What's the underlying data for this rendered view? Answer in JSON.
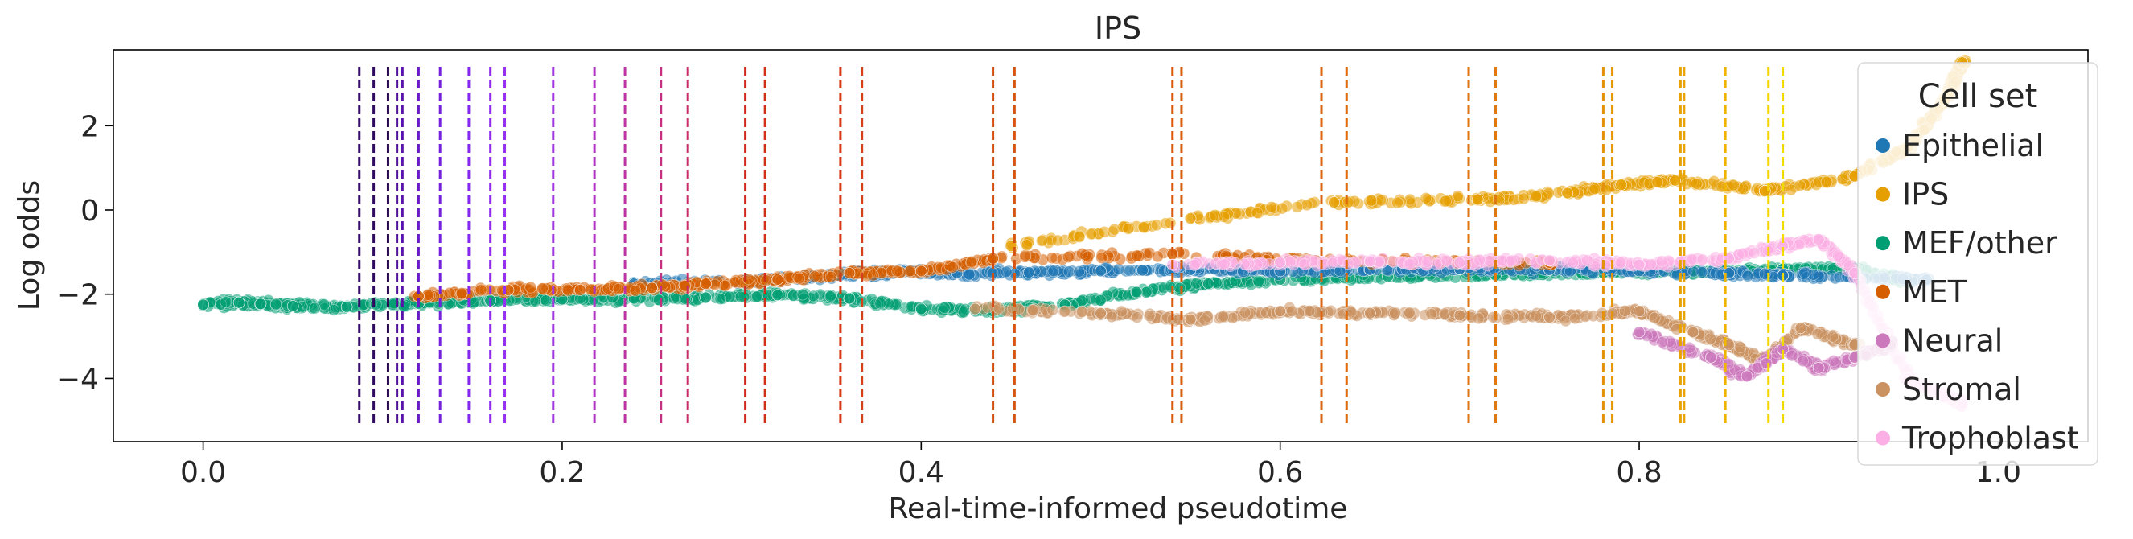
{
  "chart_data": {
    "type": "scatter",
    "title": "IPS",
    "xlabel": "Real-time-informed pseudotime",
    "ylabel": "Log odds",
    "xlim": [
      -0.05,
      1.05
    ],
    "ylim": [
      -5.5,
      3.8
    ],
    "x_ticks": [
      0.0,
      0.2,
      0.4,
      0.6,
      0.8,
      1.0
    ],
    "x_tick_labels": [
      "0.0",
      "0.2",
      "0.4",
      "0.6",
      "0.8",
      "1.0"
    ],
    "y_ticks": [
      -4,
      -2,
      0,
      2
    ],
    "y_tick_labels": [
      "−4",
      "−2",
      "0",
      "2"
    ],
    "grid": false,
    "legend": {
      "title": "Cell set",
      "placement": "top-right",
      "entries": [
        "Epithelial",
        "IPS",
        "MEF/other",
        "MET",
        "Neural",
        "Stromal",
        "Trophoblast"
      ]
    },
    "series_colors": {
      "Epithelial": "#1f77b4",
      "IPS": "#e69f00",
      "MEF/other": "#029e73",
      "MET": "#d55e00",
      "Neural": "#cc78bc",
      "Stromal": "#ca9161",
      "Trophoblast": "#fbafe4"
    },
    "vlines": {
      "ymin": -5.1,
      "ymax": 3.4,
      "style": "dashed",
      "x": [
        0.087,
        0.095,
        0.103,
        0.108,
        0.111,
        0.12,
        0.132,
        0.148,
        0.16,
        0.168,
        0.195,
        0.218,
        0.235,
        0.255,
        0.27,
        0.302,
        0.313,
        0.355,
        0.367,
        0.44,
        0.452,
        0.54,
        0.545,
        0.623,
        0.637,
        0.705,
        0.72,
        0.78,
        0.785,
        0.823,
        0.825,
        0.848,
        0.872,
        0.88
      ],
      "colors": [
        "#3a0b6e",
        "#300a60",
        "#2b0a54",
        "#52109c",
        "#5a12ad",
        "#6b19c8",
        "#7520dc",
        "#8527ec",
        "#8f2cf0",
        "#9630f0",
        "#a236e3",
        "#b035c4",
        "#bc33a6",
        "#c3307f",
        "#c92d69",
        "#cd2a1c",
        "#d02f18",
        "#d33915",
        "#d5401a",
        "#d44d12",
        "#d5540f",
        "#d65a0e",
        "#d95f10",
        "#dc6410",
        "#dd6b0f",
        "#df7410",
        "#e07a10",
        "#e49008",
        "#e69505",
        "#e8a204",
        "#e9a505",
        "#f0b400",
        "#f5d500",
        "#f2dc00"
      ]
    },
    "series": [
      {
        "name": "MEF/other",
        "points": [
          [
            0.0,
            -2.25
          ],
          [
            0.02,
            -2.2
          ],
          [
            0.032,
            -2.23
          ],
          [
            0.05,
            -2.28
          ],
          [
            0.08,
            -2.3
          ],
          [
            0.12,
            -2.22
          ],
          [
            0.16,
            -2.15
          ],
          [
            0.2,
            -2.12
          ],
          [
            0.24,
            -2.1
          ],
          [
            0.28,
            -2.08
          ],
          [
            0.32,
            -2.02
          ],
          [
            0.36,
            -2.1
          ],
          [
            0.4,
            -2.35
          ],
          [
            0.44,
            -2.4
          ],
          [
            0.48,
            -2.25
          ],
          [
            0.52,
            -1.95
          ],
          [
            0.56,
            -1.75
          ],
          [
            0.6,
            -1.65
          ],
          [
            0.66,
            -1.58
          ],
          [
            0.72,
            -1.55
          ],
          [
            0.78,
            -1.5
          ],
          [
            0.84,
            -1.45
          ],
          [
            0.88,
            -1.4
          ],
          [
            0.92,
            -1.38
          ],
          [
            0.95,
            -1.7
          ]
        ]
      },
      {
        "name": "Epithelial",
        "points": [
          [
            0.24,
            -1.75
          ],
          [
            0.3,
            -1.7
          ],
          [
            0.34,
            -1.6
          ],
          [
            0.37,
            -1.5
          ],
          [
            0.39,
            -1.45
          ],
          [
            0.42,
            -1.5
          ],
          [
            0.46,
            -1.48
          ],
          [
            0.5,
            -1.45
          ],
          [
            0.55,
            -1.42
          ],
          [
            0.6,
            -1.45
          ],
          [
            0.65,
            -1.42
          ],
          [
            0.7,
            -1.4
          ],
          [
            0.75,
            -1.42
          ],
          [
            0.8,
            -1.45
          ],
          [
            0.85,
            -1.5
          ],
          [
            0.88,
            -1.55
          ],
          [
            0.92,
            -1.6
          ],
          [
            0.96,
            -1.65
          ]
        ]
      },
      {
        "name": "MET",
        "points": [
          [
            0.12,
            -2.05
          ],
          [
            0.17,
            -1.9
          ],
          [
            0.21,
            -1.9
          ],
          [
            0.25,
            -1.85
          ],
          [
            0.28,
            -1.75
          ],
          [
            0.32,
            -1.65
          ],
          [
            0.36,
            -1.5
          ],
          [
            0.4,
            -1.45
          ],
          [
            0.44,
            -1.15
          ],
          [
            0.54,
            -1.05
          ],
          [
            0.62,
            -1.2
          ],
          [
            0.75,
            -1.25
          ]
        ]
      },
      {
        "name": "IPS",
        "points": [
          [
            0.45,
            -0.85
          ],
          [
            0.55,
            -0.2
          ],
          [
            0.63,
            0.18
          ],
          [
            0.71,
            0.25
          ],
          [
            0.76,
            0.4
          ],
          [
            0.79,
            0.6
          ],
          [
            0.82,
            0.7
          ],
          [
            0.87,
            0.45
          ],
          [
            0.92,
            0.8
          ],
          [
            0.95,
            1.5
          ],
          [
            0.97,
            2.6
          ],
          [
            0.98,
            3.5
          ]
        ]
      },
      {
        "name": "Stromal",
        "points": [
          [
            0.43,
            -2.35
          ],
          [
            0.5,
            -2.45
          ],
          [
            0.55,
            -2.6
          ],
          [
            0.6,
            -2.4
          ],
          [
            0.65,
            -2.45
          ],
          [
            0.7,
            -2.5
          ],
          [
            0.75,
            -2.55
          ],
          [
            0.8,
            -2.4
          ],
          [
            0.83,
            -2.9
          ],
          [
            0.85,
            -3.2
          ],
          [
            0.87,
            -3.6
          ],
          [
            0.89,
            -2.8
          ],
          [
            0.92,
            -3.2
          ]
        ]
      },
      {
        "name": "Trophoblast",
        "points": [
          [
            0.54,
            -1.3
          ],
          [
            0.6,
            -1.25
          ],
          [
            0.65,
            -1.22
          ],
          [
            0.7,
            -1.25
          ],
          [
            0.75,
            -1.2
          ],
          [
            0.8,
            -1.3
          ],
          [
            0.85,
            -1.15
          ],
          [
            0.88,
            -0.85
          ],
          [
            0.9,
            -0.7
          ],
          [
            0.92,
            -1.5
          ],
          [
            0.95,
            -4.0
          ],
          [
            0.98,
            -4.6
          ]
        ]
      },
      {
        "name": "Neural",
        "points": [
          [
            0.8,
            -2.9
          ],
          [
            0.84,
            -3.5
          ],
          [
            0.86,
            -3.95
          ],
          [
            0.88,
            -3.3
          ],
          [
            0.9,
            -3.75
          ],
          [
            0.92,
            -3.5
          ],
          [
            0.94,
            -3.2
          ]
        ]
      }
    ]
  }
}
